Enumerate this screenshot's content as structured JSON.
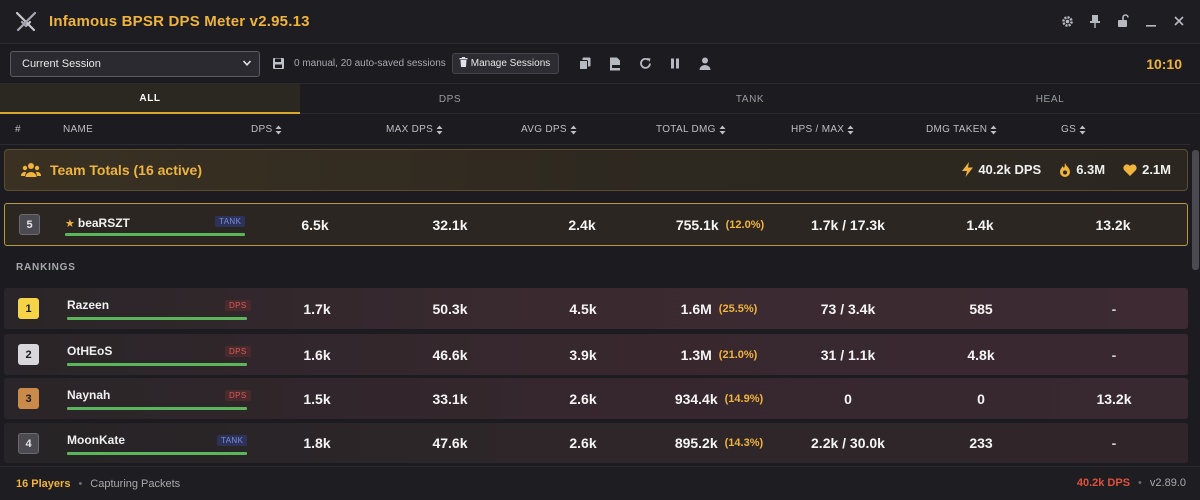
{
  "app": {
    "title": "Infamous BPSR DPS Meter v2.95.13",
    "logo": "crossed-swords-icon"
  },
  "window_controls": [
    "settings-icon",
    "pin-icon",
    "unlock-icon",
    "minimize-icon",
    "close-icon"
  ],
  "toolbar": {
    "session_select": "Current Session",
    "session_info": "0 manual, 20 auto-saved sessions",
    "manage_label": "Manage Sessions",
    "icons": [
      "copy-icon",
      "csv-export-icon",
      "refresh-icon",
      "pause-icon",
      "user-icon"
    ],
    "timer": "10:10"
  },
  "tabs": [
    {
      "label": "ALL",
      "active": true
    },
    {
      "label": "DPS",
      "active": false
    },
    {
      "label": "TANK",
      "active": false
    },
    {
      "label": "HEAL",
      "active": false
    }
  ],
  "columns": {
    "rank": "#",
    "name": "NAME",
    "dps": "DPS",
    "max_dps": "MAX DPS",
    "avg_dps": "AVG DPS",
    "total_dmg": "TOTAL DMG",
    "hps_max": "HPS / MAX",
    "dmg_taken": "DMG TAKEN",
    "gs": "GS"
  },
  "team_totals": {
    "label": "Team Totals (16 active)",
    "dps": "40.2k DPS",
    "total": "6.3M",
    "heal": "2.1M"
  },
  "self_row": {
    "rank": "5",
    "name": "beaRSZT",
    "role": "TANK",
    "dps": "6.5k",
    "max_dps": "32.1k",
    "avg_dps": "2.4k",
    "total_dmg": "755.1k",
    "pct": "(12.0%)",
    "hps_max": "1.7k / 17.3k",
    "dmg_taken": "1.4k",
    "gs": "13.2k"
  },
  "rankings_label": "RANKINGS",
  "rankings": [
    {
      "rank": "1",
      "name": "Razeen",
      "role": "DPS",
      "dps": "1.7k",
      "max_dps": "50.3k",
      "avg_dps": "4.5k",
      "total_dmg": "1.6M",
      "pct": "(25.5%)",
      "hps_max": "73 / 3.4k",
      "dmg_taken": "585",
      "gs": "-"
    },
    {
      "rank": "2",
      "name": "OtHEoS",
      "role": "DPS",
      "dps": "1.6k",
      "max_dps": "46.6k",
      "avg_dps": "3.9k",
      "total_dmg": "1.3M",
      "pct": "(21.0%)",
      "hps_max": "31 / 1.1k",
      "dmg_taken": "4.8k",
      "gs": "-"
    },
    {
      "rank": "3",
      "name": "Naynah",
      "role": "DPS",
      "dps": "1.5k",
      "max_dps": "33.1k",
      "avg_dps": "2.6k",
      "total_dmg": "934.4k",
      "pct": "(14.9%)",
      "hps_max": "0",
      "dmg_taken": "0",
      "gs": "13.2k"
    },
    {
      "rank": "4",
      "name": "MoonKate",
      "role": "TANK",
      "dps": "1.8k",
      "max_dps": "47.6k",
      "avg_dps": "2.6k",
      "total_dmg": "895.2k",
      "pct": "(14.3%)",
      "hps_max": "2.2k / 30.0k",
      "dmg_taken": "233",
      "gs": "-"
    }
  ],
  "footer": {
    "players": "16 Players",
    "separator": "•",
    "status": "Capturing Packets",
    "dps": "40.2k DPS",
    "version": "v2.89.0"
  },
  "colors": {
    "accent": "#f0b43c",
    "dps_role": "#d9595a",
    "tank_role": "#7a8cdc",
    "bar": "#5bb55b",
    "footer_dps": "#e0503c"
  }
}
